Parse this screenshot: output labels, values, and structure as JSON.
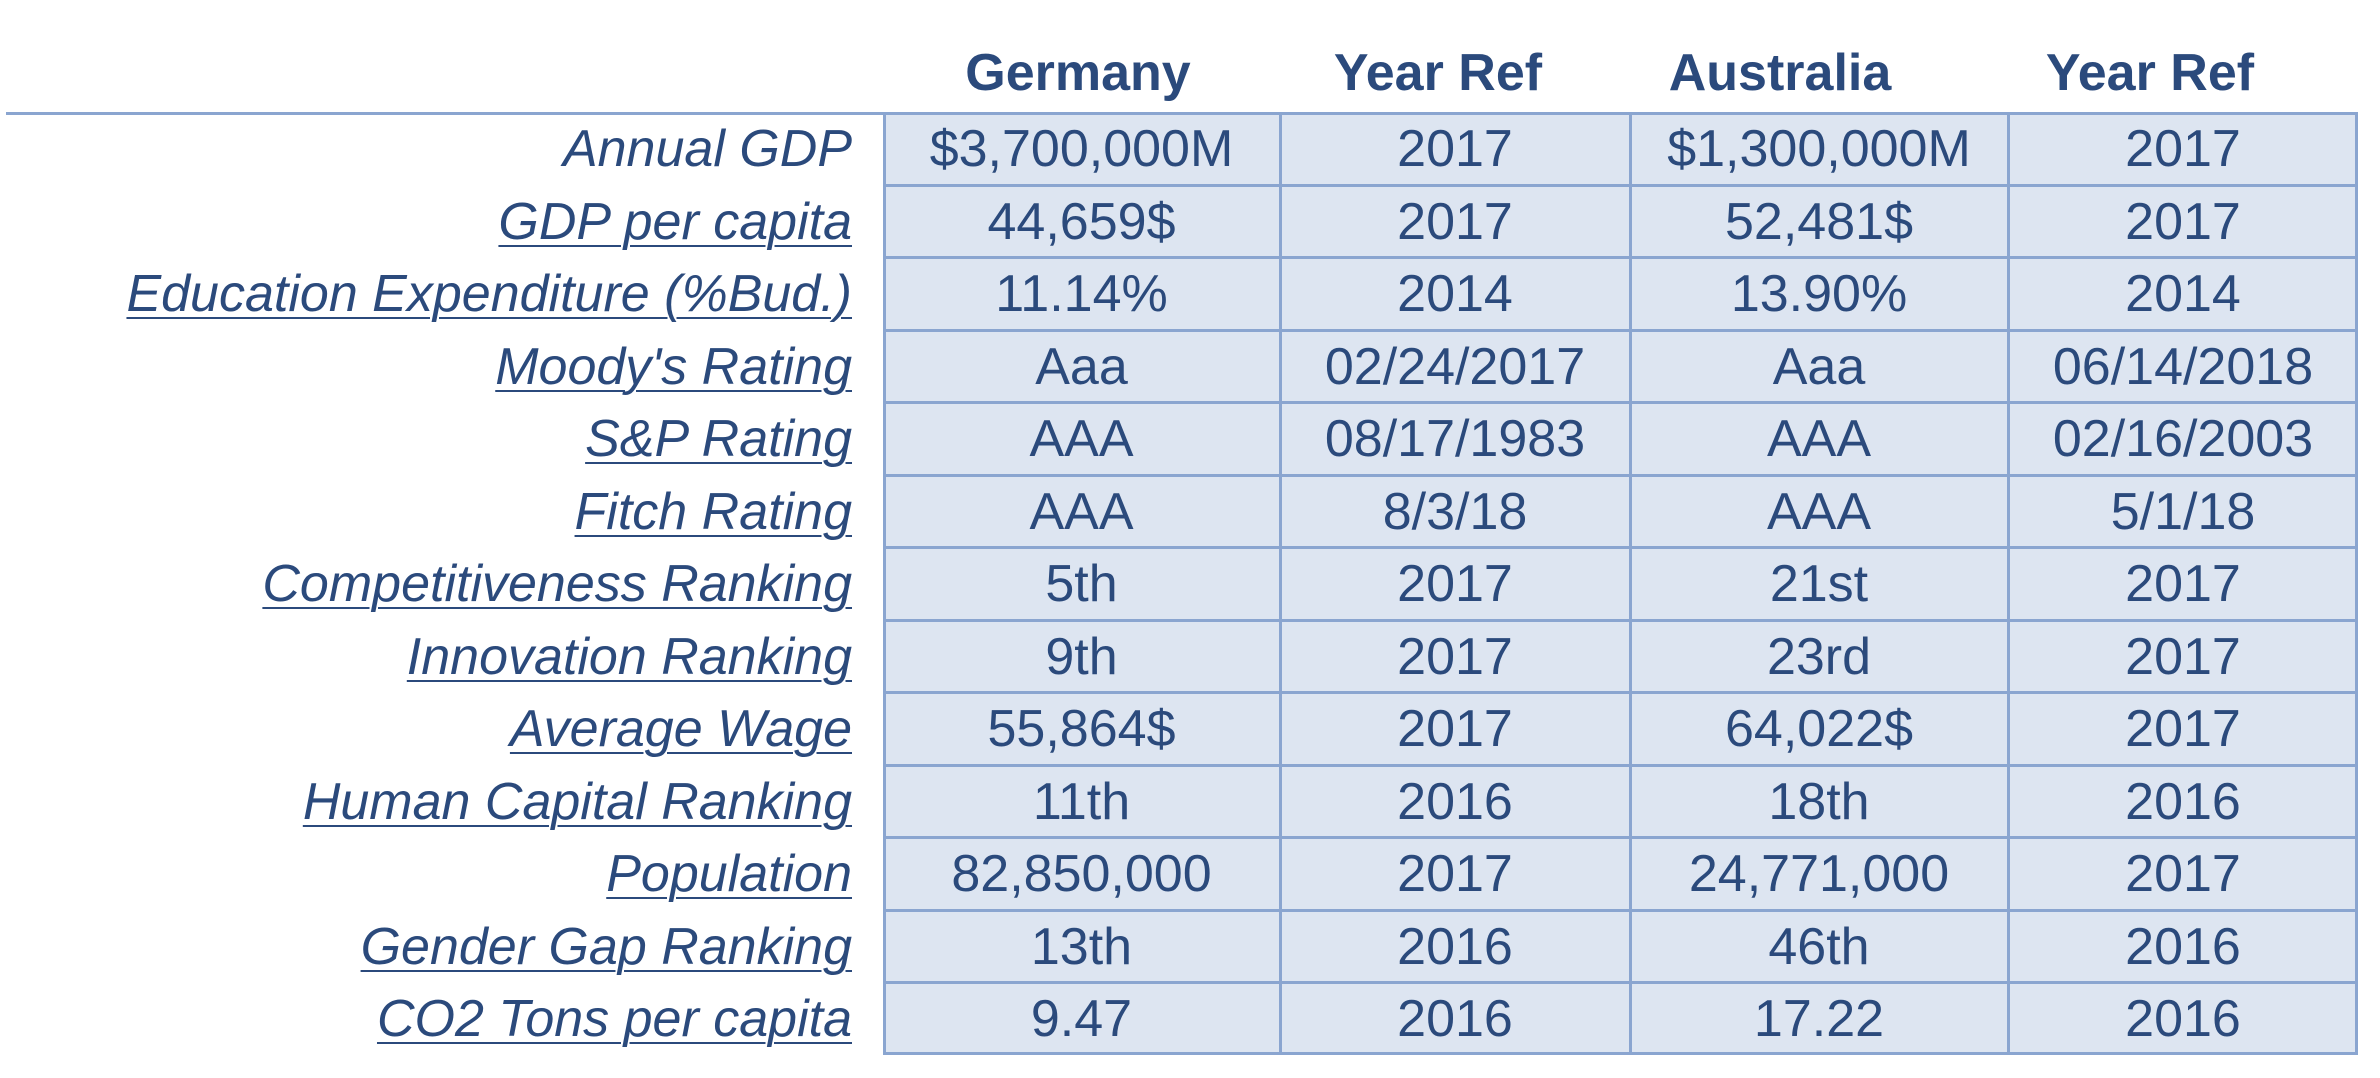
{
  "table": {
    "headers": [
      "Germany",
      "Year Ref",
      "Australia",
      "Year Ref"
    ],
    "rows": [
      {
        "label": "Annual GDP",
        "cells": [
          "$3,700,000M",
          "2017",
          "$1,300,000M",
          "2017"
        ]
      },
      {
        "label": "GDP per capita",
        "cells": [
          "44,659$",
          "2017",
          "52,481$",
          "2017"
        ]
      },
      {
        "label": "Education Expenditure (%Bud.)",
        "cells": [
          "11.14%",
          "2014",
          "13.90%",
          "2014"
        ]
      },
      {
        "label": "Moody's Rating",
        "cells": [
          "Aaa",
          "02/24/2017",
          "Aaa",
          "06/14/2018"
        ]
      },
      {
        "label": "S&P Rating",
        "cells": [
          "AAA",
          "08/17/1983",
          "AAA",
          "02/16/2003"
        ]
      },
      {
        "label": "Fitch Rating",
        "cells": [
          "AAA",
          "8/3/18",
          "AAA",
          "5/1/18"
        ]
      },
      {
        "label": "Competitiveness Ranking",
        "cells": [
          "5th",
          "2017",
          "21st",
          "2017"
        ]
      },
      {
        "label": "Innovation Ranking",
        "cells": [
          "9th",
          "2017",
          "23rd",
          "2017"
        ]
      },
      {
        "label": "Average Wage",
        "cells": [
          "55,864$",
          "2017",
          "64,022$",
          "2017"
        ]
      },
      {
        "label": "Human Capital Ranking",
        "cells": [
          "11th",
          "2016",
          "18th",
          "2016"
        ]
      },
      {
        "label": "Population",
        "cells": [
          "82,850,000",
          "2017",
          "24,771,000",
          "2017"
        ]
      },
      {
        "label": "Gender Gap Ranking",
        "cells": [
          "13th",
          "2016",
          "46th",
          "2016"
        ]
      },
      {
        "label": "CO2 Tons per capita",
        "cells": [
          "9.47",
          "2016",
          "17.22",
          "2016"
        ]
      }
    ]
  },
  "colors": {
    "text": "#2b4a7c",
    "grid_fill": "#dde5f1",
    "grid_line": "#8aa5d0"
  }
}
